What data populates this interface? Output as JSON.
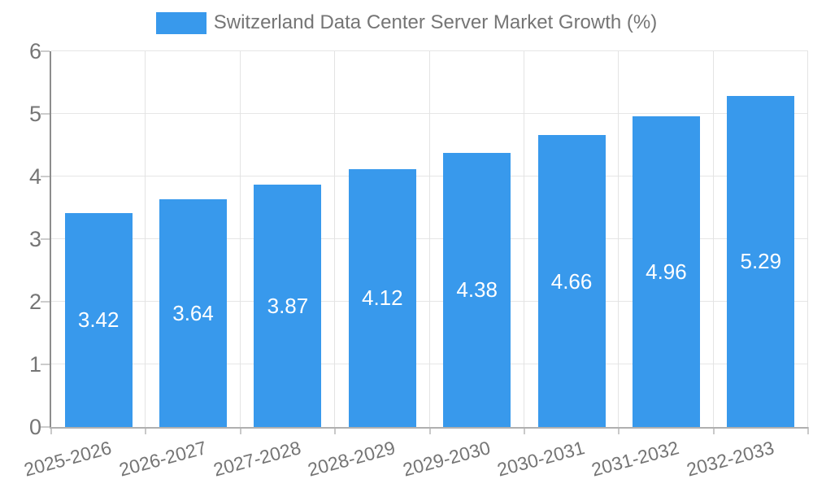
{
  "legend": {
    "label": "Switzerland Data Center Server Market Growth (%)"
  },
  "chart_data": {
    "type": "bar",
    "title": "Switzerland Data Center Server Market Growth (%)",
    "categories": [
      "2025-2026",
      "2026-2027",
      "2027-2028",
      "2028-2029",
      "2029-2030",
      "2030-2031",
      "2031-2032",
      "2032-2033"
    ],
    "values": [
      3.42,
      3.64,
      3.87,
      4.12,
      4.38,
      4.66,
      4.96,
      5.29
    ],
    "value_labels": [
      "3.42",
      "3.64",
      "3.87",
      "4.12",
      "4.38",
      "4.66",
      "4.96",
      "5.29"
    ],
    "xlabel": "",
    "ylabel": "",
    "ylim": [
      0,
      6
    ],
    "yticks": [
      0,
      1,
      2,
      3,
      4,
      5,
      6
    ],
    "grid": true,
    "legend_position": "top",
    "colors": {
      "bar": "#3899ec",
      "value_label": "#ffffff",
      "axis_text": "#757575",
      "gridline": "#e6e6e6",
      "y_axis_line": "#8c8c8c",
      "x_axis_line": "#b0b0b0"
    }
  }
}
